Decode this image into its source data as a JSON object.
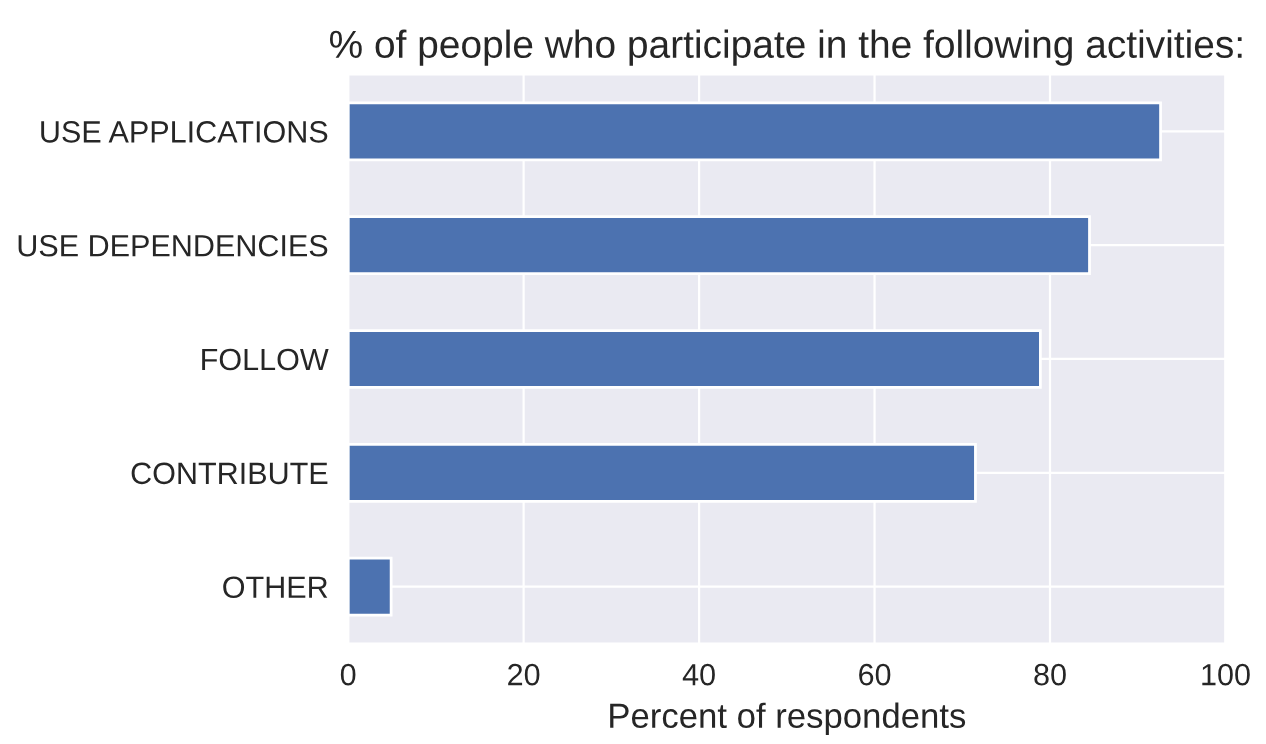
{
  "chart_data": {
    "type": "bar",
    "orientation": "horizontal",
    "title": "% of people who participate in the following activities:",
    "xlabel": "Percent of respondents",
    "categories": [
      "USE APPLICATIONS",
      "USE DEPENDENCIES",
      "FOLLOW",
      "CONTRIBUTE",
      "OTHER"
    ],
    "values": [
      92.6,
      84.5,
      78.9,
      71.5,
      4.9
    ],
    "color": "#4c72b0",
    "xlim": [
      0,
      100
    ],
    "xticks": [
      0,
      20,
      40,
      60,
      80,
      100
    ],
    "grid": true,
    "legend": false
  }
}
